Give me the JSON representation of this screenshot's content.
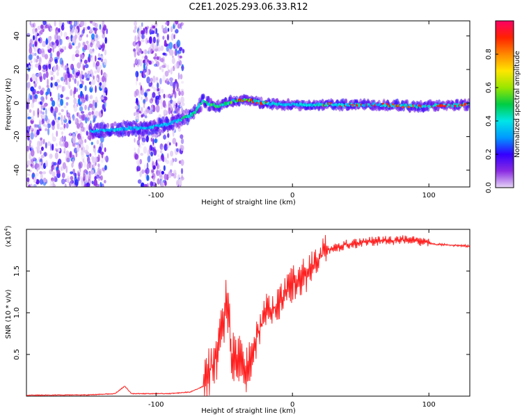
{
  "title": "C2E1.2025.293.06.33.R12",
  "chart_data": [
    {
      "type": "heatmap",
      "name": "spectrogram",
      "xlabel": "Height of straight line (km)",
      "ylabel": "Frequency (Hz)",
      "xlim": [
        -195,
        130
      ],
      "ylim": [
        -50,
        49
      ],
      "x_ticks": [
        -100,
        0,
        100
      ],
      "x_tick_labels": [
        "-100",
        "0",
        "100"
      ],
      "y_ticks": [
        -40,
        -20,
        0,
        20,
        40
      ],
      "y_tick_labels": [
        "-40",
        "-20",
        "0",
        "20",
        "40"
      ],
      "ridge": [
        {
          "x": -148,
          "y": -17
        },
        {
          "x": -135,
          "y": -16
        },
        {
          "x": -120,
          "y": -15
        },
        {
          "x": -107,
          "y": -15
        },
        {
          "x": -95,
          "y": -13
        },
        {
          "x": -82,
          "y": -10
        },
        {
          "x": -72,
          "y": -6
        },
        {
          "x": -66,
          "y": 1
        },
        {
          "x": -55,
          "y": -2
        },
        {
          "x": -45,
          "y": 1
        },
        {
          "x": -35,
          "y": 2
        },
        {
          "x": -22,
          "y": 0
        },
        {
          "x": -5,
          "y": -1
        },
        {
          "x": 10,
          "y": -1
        },
        {
          "x": 30,
          "y": -1
        },
        {
          "x": 60,
          "y": -1
        },
        {
          "x": 90,
          "y": -2
        },
        {
          "x": 130,
          "y": -1
        }
      ],
      "noise_bands": [
        [
          -195,
          -136
        ],
        [
          -116,
          -80
        ]
      ],
      "colorbar": {
        "label": "Normalized spectral amplitude",
        "range": [
          0,
          1
        ],
        "ticks": [
          0.0,
          0.2,
          0.4,
          0.6,
          0.8
        ],
        "tick_labels": [
          "0.0",
          "0.2",
          "0.4",
          "0.6",
          "0.8"
        ],
        "colors": [
          "#e6d6f6",
          "#8a2be2",
          "#3300ff",
          "#0099ff",
          "#00e6e6",
          "#00cc44",
          "#99e600",
          "#ffe600",
          "#ff8800",
          "#ff2200",
          "#ff0066"
        ]
      }
    },
    {
      "type": "line",
      "name": "snr",
      "xlabel": "Height of straight line (km)",
      "ylabel": "SNR (10 * v/v)",
      "scale_label": "(x10",
      "scale_exponent": "4",
      "xlim": [
        -195,
        130
      ],
      "ylim": [
        0,
        2.0
      ],
      "x_ticks": [
        -100,
        0,
        100
      ],
      "x_tick_labels": [
        "-100",
        "0",
        "100"
      ],
      "y_ticks": [
        0.5,
        1.0,
        1.5
      ],
      "y_tick_labels": [
        "0.5",
        "1.0",
        "1.5"
      ],
      "color": "#ff2020",
      "series": [
        {
          "x": -195,
          "y": 0.01
        },
        {
          "x": -150,
          "y": 0.015
        },
        {
          "x": -130,
          "y": 0.03
        },
        {
          "x": -123,
          "y": 0.12
        },
        {
          "x": -118,
          "y": 0.03
        },
        {
          "x": -90,
          "y": 0.03
        },
        {
          "x": -75,
          "y": 0.05
        },
        {
          "x": -65,
          "y": 0.12
        },
        {
          "x": -58,
          "y": 0.4
        },
        {
          "x": -52,
          "y": 0.7
        },
        {
          "x": -48,
          "y": 1.25
        },
        {
          "x": -45,
          "y": 0.5
        },
        {
          "x": -40,
          "y": 0.5
        },
        {
          "x": -35,
          "y": 0.2
        },
        {
          "x": -28,
          "y": 0.6
        },
        {
          "x": -20,
          "y": 1.0
        },
        {
          "x": -10,
          "y": 1.1
        },
        {
          "x": 0,
          "y": 1.35
        },
        {
          "x": 10,
          "y": 1.45
        },
        {
          "x": 18,
          "y": 1.6
        },
        {
          "x": 25,
          "y": 1.75
        },
        {
          "x": 40,
          "y": 1.82
        },
        {
          "x": 60,
          "y": 1.86
        },
        {
          "x": 80,
          "y": 1.87
        },
        {
          "x": 95,
          "y": 1.85
        },
        {
          "x": 105,
          "y": 1.82
        },
        {
          "x": 130,
          "y": 1.8
        }
      ]
    }
  ]
}
